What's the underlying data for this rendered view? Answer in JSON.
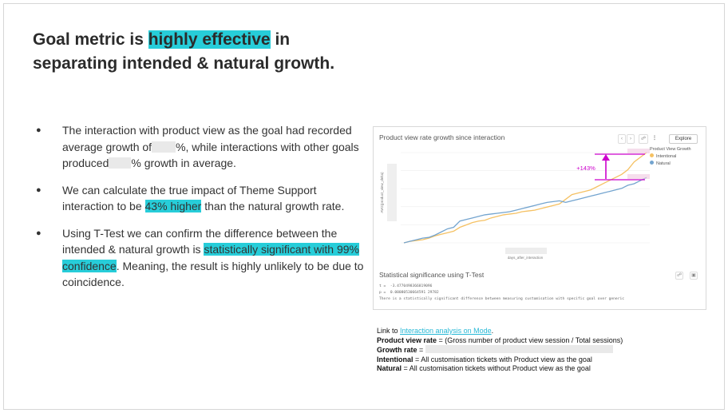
{
  "title": {
    "pre": "Goal metric is ",
    "highlight": "highly effective",
    "post": " in",
    "line2": "separating intended & natural growth."
  },
  "bullets": [
    {
      "a": "The interaction with product view as the goal had recorded average growth of",
      "b": "%, while interactions with other goals produced",
      "c": "% growth in average."
    },
    {
      "a": "We can calculate the true impact of Theme Support interaction to be ",
      "highlight": "43% higher",
      "b": " than the natural growth rate."
    },
    {
      "a": "Using T-Test we can confirm the difference between the intended & natural growth is ",
      "highlight": "statistically significant with 99% confidence",
      "b": ". Meaning, the result is highly unlikely to be due to coincidence."
    }
  ],
  "chart_card": {
    "title": "Product view rate growth since interaction",
    "explore": "Explore",
    "legend_title": "Product View Growth",
    "xlabel": "days_after_interaction",
    "ylabel": "AVG(product_view_delta)",
    "annotation": "+143%",
    "stat_title": "Statistical significance using T-Test",
    "stat_t": "t =  -3.4770498366819096",
    "stat_p": "p =  0.00080530664591 29782",
    "stat_msg": "There is a statistically significant difference between measuring customisation with specific goal over generic"
  },
  "chart_data": {
    "type": "line",
    "x": [
      0,
      1,
      2,
      3,
      4,
      5,
      6,
      7,
      8,
      9,
      10,
      11,
      12,
      13,
      14,
      15,
      16,
      17,
      18,
      19,
      20,
      21,
      22,
      23,
      24,
      25,
      26,
      27,
      28,
      29,
      30,
      31,
      32,
      33,
      34,
      35,
      36,
      37,
      38,
      39
    ],
    "series": [
      {
        "name": "Intentional",
        "color": "#f5c163",
        "values": [
          0,
          1,
          1.5,
          2,
          3,
          4.5,
          5.5,
          6.5,
          7.5,
          10,
          11.5,
          13,
          14,
          14.5,
          16,
          17,
          18,
          18.5,
          19,
          20,
          20.5,
          21,
          22,
          23,
          24,
          25,
          28,
          31,
          32,
          33,
          34,
          36,
          38,
          40,
          42,
          44,
          47,
          52,
          55,
          58
        ]
      },
      {
        "name": "Natural",
        "color": "#73a4cf",
        "values": [
          0,
          1,
          2,
          3,
          3.5,
          5,
          7,
          9,
          10,
          14,
          15,
          16,
          17,
          18,
          18.5,
          19,
          19.5,
          20,
          21,
          22,
          23,
          24,
          25,
          26,
          26.5,
          27,
          26,
          27,
          28,
          29,
          30,
          31,
          32,
          33,
          34,
          35,
          37,
          38,
          40,
          42
        ]
      }
    ],
    "colors": {
      "accent": "#27cdd9",
      "annotation": "#cc00cc"
    }
  },
  "notes": {
    "link_prefix": "Link to ",
    "link_text": "Interaction analysis on Mode",
    "link_suffix": ".",
    "pvr_label": "Product view rate",
    "pvr_text": " = (Gross number of product view session / Total sessions)",
    "gr_label": "Growth rate",
    "gr_text": " = ",
    "int_label": "Intentional",
    "int_text": " = All customisation tickets with Product view as the goal",
    "nat_label": "Natural",
    "nat_text": " = All customisation tickets without Product view as the goal"
  }
}
